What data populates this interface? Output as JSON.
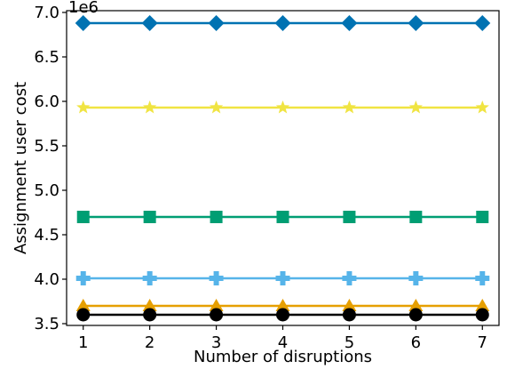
{
  "chart_data": {
    "type": "line",
    "title": "",
    "xlabel": "Number of disruptions",
    "ylabel": "Assignment user cost",
    "y_offset_label": "1e6",
    "x": [
      1,
      2,
      3,
      4,
      5,
      6,
      7
    ],
    "xlim": [
      0.75,
      7.25
    ],
    "ylim": [
      3.48,
      7.02
    ],
    "x_ticks": [
      1,
      2,
      3,
      4,
      5,
      6,
      7
    ],
    "x_tick_labels": [
      "1",
      "2",
      "3",
      "4",
      "5",
      "6",
      "7"
    ],
    "y_ticks": [
      3.5,
      4.0,
      4.5,
      5.0,
      5.5,
      6.0,
      6.5,
      7.0
    ],
    "y_tick_labels": [
      "3.5",
      "4.0",
      "4.5",
      "5.0",
      "5.5",
      "6.0",
      "6.5",
      "7.0"
    ],
    "grid": false,
    "legend": false,
    "series": [
      {
        "color": "#0072B2",
        "marker": "diamond",
        "values": [
          6.88,
          6.88,
          6.88,
          6.88,
          6.88,
          6.88,
          6.88
        ]
      },
      {
        "color": "#F0E442",
        "marker": "star",
        "values": [
          5.93,
          5.93,
          5.93,
          5.93,
          5.93,
          5.93,
          5.93
        ]
      },
      {
        "color": "#009E73",
        "marker": "square",
        "values": [
          4.7,
          4.7,
          4.7,
          4.7,
          4.7,
          4.7,
          4.7
        ]
      },
      {
        "color": "#56B4E9",
        "marker": "plus",
        "values": [
          4.01,
          4.01,
          4.01,
          4.01,
          4.01,
          4.01,
          4.01
        ]
      },
      {
        "color": "#E69F00",
        "marker": "triangle",
        "values": [
          3.7,
          3.7,
          3.7,
          3.7,
          3.7,
          3.7,
          3.7
        ]
      },
      {
        "color": "#000000",
        "marker": "circle",
        "values": [
          3.6,
          3.6,
          3.6,
          3.6,
          3.6,
          3.6,
          3.6
        ]
      }
    ]
  }
}
